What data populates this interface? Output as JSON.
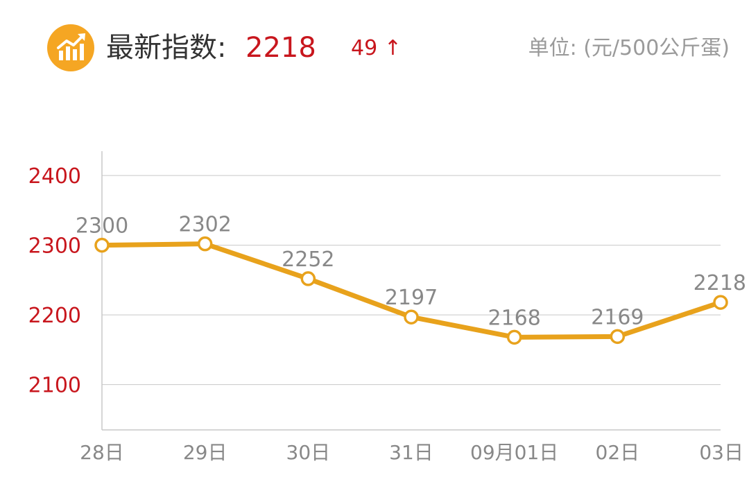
{
  "header": {
    "title_label": "最新指数:",
    "title_value": "2218",
    "change_value": "49",
    "change_arrow": "↑",
    "unit": "单位: (元/500公斤蛋)",
    "logo_icon": "chart-growth-icon"
  },
  "colors": {
    "accent": "#f5a623",
    "line": "#e8a21c",
    "value_red": "#c8161d",
    "label_gray": "#888888",
    "grid": "#c8c8c8"
  },
  "chart_data": {
    "type": "line",
    "categories": [
      "28日",
      "29日",
      "30日",
      "31日",
      "09月01日",
      "02日",
      "03日"
    ],
    "series": [
      {
        "values": [
          2300,
          2302,
          2252,
          2197,
          2168,
          2169,
          2218
        ]
      }
    ],
    "data_labels": [
      "2300",
      "2302",
      "2252",
      "2197",
      "2168",
      "2169",
      "2218"
    ],
    "yticks": [
      2100,
      2200,
      2300,
      2400
    ],
    "ytick_labels": [
      "2100",
      "2200",
      "2300",
      "2400"
    ],
    "ylim": [
      2035,
      2435
    ],
    "grid": true,
    "title": "",
    "xlabel": "",
    "ylabel": ""
  }
}
